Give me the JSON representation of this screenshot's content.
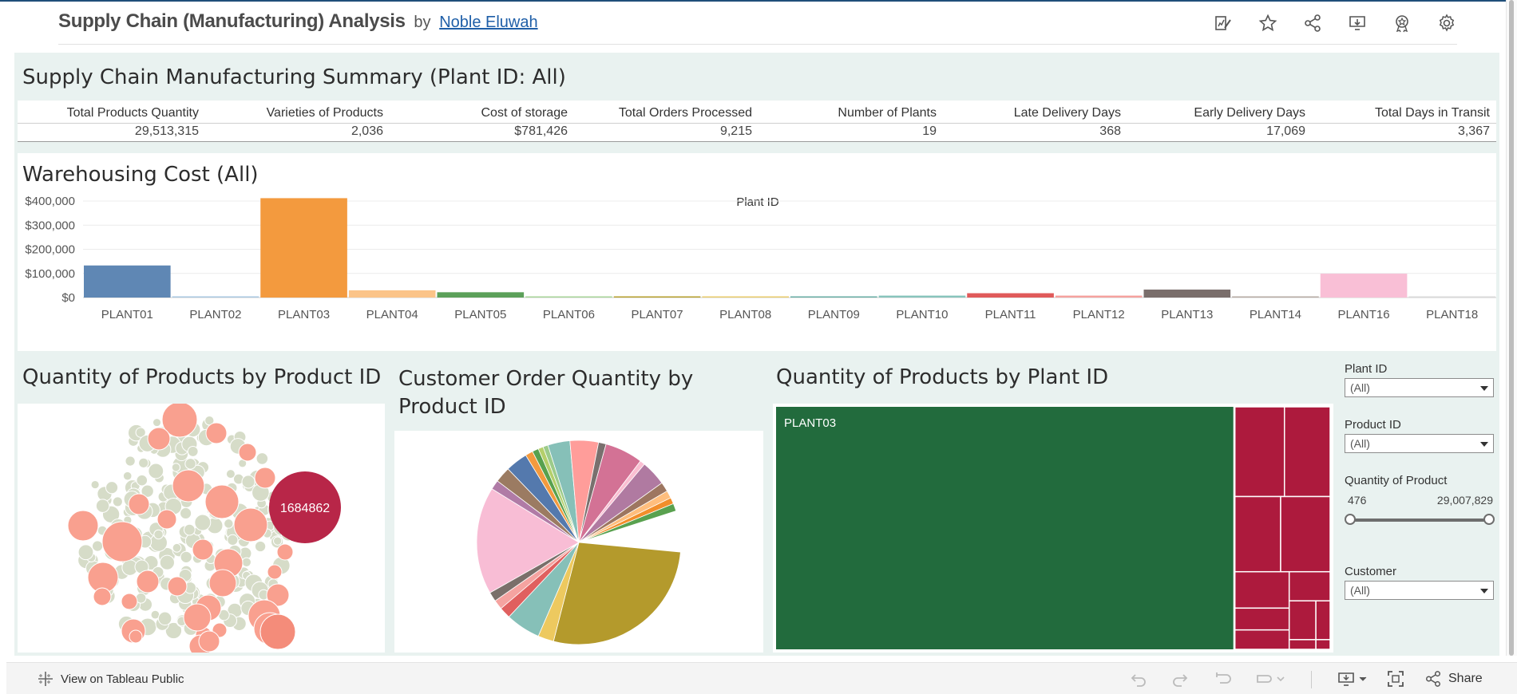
{
  "header": {
    "title": "Supply Chain (Manufacturing) Analysis",
    "by": "by",
    "author": "Noble Eluwah",
    "icons": [
      "edit-icon",
      "star-icon",
      "share-icon",
      "download-icon",
      "badge-icon",
      "settings-icon"
    ]
  },
  "summary": {
    "title": "Supply Chain Manufacturing Summary (Plant ID: All)",
    "headers": [
      "Total Products Quantity",
      "Varieties of Products",
      "Cost of storage",
      "Total Orders Processed",
      "Number of Plants",
      "Late Delivery Days",
      "Early Delivery Days",
      "Total Days in Transit"
    ],
    "values": [
      "29,513,315",
      "2,036",
      "$781,426",
      "9,215",
      "19",
      "368",
      "17,069",
      "3,367"
    ]
  },
  "warehousing": {
    "title": "Warehousing Cost (All)",
    "chart_data": {
      "type": "bar",
      "title": "Warehousing Cost (All)",
      "xlabel": "Plant ID",
      "ylabel": "",
      "ylim": [
        0,
        420000
      ],
      "yticks": [
        "$400,000",
        "$300,000",
        "$200,000",
        "$100,000",
        "$0"
      ],
      "ytick_values": [
        400000,
        300000,
        200000,
        100000,
        0
      ],
      "categories": [
        "PLANT01",
        "PLANT02",
        "PLANT03",
        "PLANT04",
        "PLANT05",
        "PLANT06",
        "PLANT07",
        "PLANT08",
        "PLANT09",
        "PLANT10",
        "PLANT11",
        "PLANT12",
        "PLANT13",
        "PLANT14",
        "PLANT16",
        "PLANT18"
      ],
      "values": [
        133000,
        5000,
        412000,
        30000,
        22000,
        500,
        4000,
        500,
        800,
        8000,
        18000,
        8000,
        33000,
        600,
        99000,
        2000
      ],
      "colors": [
        "#5f87b4",
        "#a9c8e0",
        "#f39a3e",
        "#fbc489",
        "#5ca05a",
        "#a8d69a",
        "#b7a02e",
        "#e9cc6c",
        "#6aaea6",
        "#88c4bc",
        "#e05a5a",
        "#f5a19e",
        "#7a6e6b",
        "#b7aca5",
        "#f9bfd6",
        "#d9d9d9"
      ],
      "grid": true
    }
  },
  "quantity_by_product": {
    "title": "Quantity of Products by Product ID",
    "chart_data": {
      "type": "bubble",
      "highlight_label": "1684862",
      "highlight_value": 1684862
    }
  },
  "customer_order": {
    "title": "Customer Order Quantity by Product ID",
    "chart_data": {
      "type": "pie",
      "slices": [
        {
          "share": 0.275,
          "color": "#b49a2c"
        },
        {
          "share": 0.025,
          "color": "#edc95f"
        },
        {
          "share": 0.055,
          "color": "#86c0b8"
        },
        {
          "share": 0.018,
          "color": "#e0605f"
        },
        {
          "share": 0.015,
          "color": "#f5a3a0"
        },
        {
          "share": 0.015,
          "color": "#7a6f6a"
        },
        {
          "share": 0.17,
          "color": "#f8bdd5"
        },
        {
          "share": 0.015,
          "color": "#b07ba6"
        },
        {
          "share": 0.025,
          "color": "#9b7b62"
        },
        {
          "share": 0.035,
          "color": "#5479ad"
        },
        {
          "share": 0.012,
          "color": "#f39a3e"
        },
        {
          "share": 0.01,
          "color": "#58a14e"
        },
        {
          "share": 0.008,
          "color": "#b5cf6b"
        },
        {
          "share": 0.008,
          "color": "#9ccb8a"
        },
        {
          "share": 0.035,
          "color": "#86c0b8"
        },
        {
          "share": 0.045,
          "color": "#ff9d9a"
        },
        {
          "share": 0.012,
          "color": "#79706e"
        },
        {
          "share": 0.06,
          "color": "#d37295"
        },
        {
          "share": 0.008,
          "color": "#fabfd2"
        },
        {
          "share": 0.04,
          "color": "#b07aa1"
        },
        {
          "share": 0.015,
          "color": "#9d7660"
        },
        {
          "share": 0.012,
          "color": "#ffbe7d"
        },
        {
          "share": 0.01,
          "color": "#f28e2b"
        },
        {
          "share": 0.012,
          "color": "#59a14f"
        }
      ]
    }
  },
  "quantity_by_plant": {
    "title": "Quantity of Products by Plant ID",
    "chart_data": {
      "type": "treemap",
      "leaves": [
        {
          "name": "PLANT03",
          "label": "PLANT03",
          "share": 0.83,
          "color": "#226b3d"
        },
        {
          "name": "other",
          "label": "",
          "share": 0.17,
          "color": "#ad1a3d"
        }
      ]
    }
  },
  "filters": {
    "plant_label": "Plant ID",
    "plant_value": "(All)",
    "product_label": "Product ID",
    "product_value": "(All)",
    "quantity_label": "Quantity of Product",
    "quantity_min": "476",
    "quantity_max": "29,007,829",
    "customer_label": "Customer",
    "customer_value": "(All)"
  },
  "toolbar": {
    "view_label": "View on Tableau Public",
    "share_label": "Share"
  },
  "colors": {
    "dashboard_bg": "#e9f2f0",
    "header_accent": "#1f4e79",
    "treemap_main": "#226b3d",
    "treemap_other": "#ad1a3d",
    "bubble_pink": "#f9a08f",
    "bubble_gray": "#d6dcc8",
    "bubble_highlight": "#b82648"
  }
}
